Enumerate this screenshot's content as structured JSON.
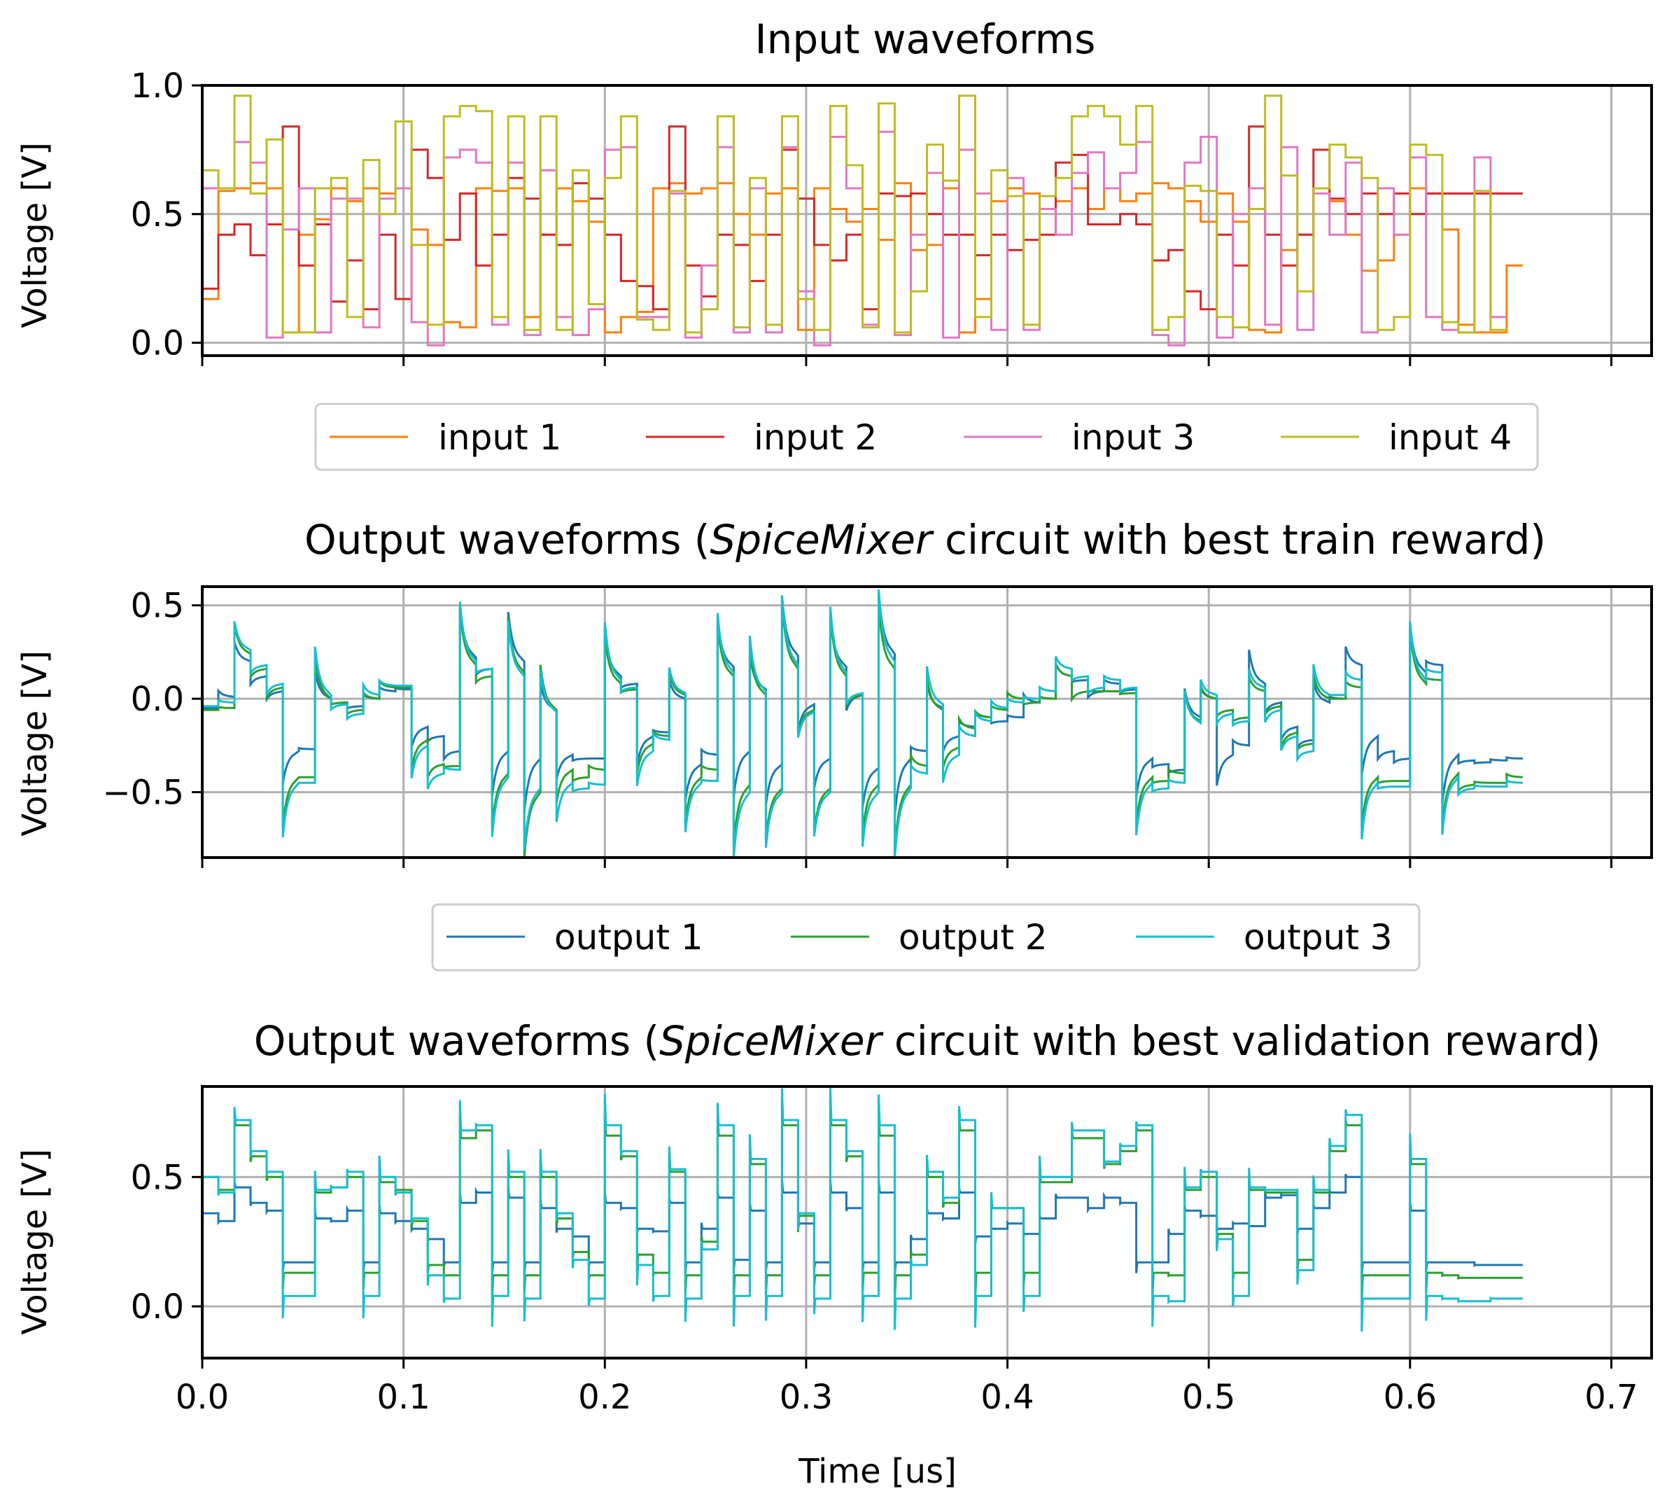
{
  "chart_data": [
    {
      "type": "line",
      "id": "inputs",
      "title": "Input waveforms",
      "ylabel": "Voltage [V]",
      "xlabel": "",
      "xlim": [
        0,
        0.72
      ],
      "ylim": [
        -0.05,
        1.0
      ],
      "yticks": [
        0.0,
        0.5,
        1.0
      ],
      "ytick_labels": [
        "0.0",
        "0.5",
        "1.0"
      ],
      "xticks": [
        0.0,
        0.1,
        0.2,
        0.3,
        0.4,
        0.5,
        0.6,
        0.7
      ],
      "xtick_labels": [],
      "grid": true,
      "legend_position": "below",
      "step": 0.008,
      "series": [
        {
          "name": "input 1",
          "color": "#ff7f0e",
          "values": [
            0.17,
            0.59,
            0.6,
            0.62,
            0.6,
            0.04,
            0.42,
            0.48,
            0.6,
            0.55,
            0.6,
            0.58,
            0.6,
            0.44,
            0.38,
            0.08,
            0.06,
            0.6,
            0.59,
            0.6,
            0.1,
            0.42,
            0.6,
            0.55,
            0.47,
            0.04,
            0.1,
            0.12,
            0.6,
            0.62,
            0.58,
            0.6,
            0.62,
            0.5,
            0.42,
            0.58,
            0.6,
            0.05,
            0.6,
            0.52,
            0.47,
            0.52,
            0.4,
            0.62,
            0.36,
            0.38,
            0.6,
            0.04,
            0.17,
            0.55,
            0.6,
            0.58,
            0.52,
            0.55,
            0.6,
            0.52,
            0.6,
            0.55,
            0.58,
            0.62,
            0.6,
            0.55,
            0.47,
            0.58,
            0.47,
            0.05,
            0.04,
            0.36,
            0.42,
            0.6,
            0.55,
            0.42,
            0.28,
            0.32,
            0.42,
            0.6,
            0.58,
            0.44,
            0.07,
            0.04,
            0.04,
            0.3
          ]
        },
        {
          "name": "input 2",
          "color": "#d62728",
          "values": [
            0.21,
            0.42,
            0.46,
            0.34,
            0.46,
            0.84,
            0.3,
            0.46,
            0.16,
            0.32,
            0.13,
            0.42,
            0.17,
            0.75,
            0.64,
            0.4,
            0.58,
            0.3,
            0.42,
            0.64,
            0.56,
            0.42,
            0.38,
            0.62,
            0.56,
            0.42,
            0.24,
            0.22,
            0.13,
            0.84,
            0.3,
            0.18,
            0.42,
            0.38,
            0.24,
            0.42,
            0.75,
            0.56,
            0.38,
            0.32,
            0.42,
            0.13,
            0.58,
            0.57,
            0.58,
            0.5,
            0.42,
            0.42,
            0.34,
            0.42,
            0.36,
            0.4,
            0.42,
            0.7,
            0.73,
            0.46,
            0.46,
            0.5,
            0.46,
            0.32,
            0.36,
            0.2,
            0.13,
            0.42,
            0.3,
            0.84,
            0.42,
            0.3,
            0.42,
            0.75,
            0.56,
            0.5,
            0.58,
            0.5,
            0.58,
            0.5,
            0.58,
            0.58,
            0.58,
            0.58,
            0.58,
            0.58
          ]
        },
        {
          "name": "input 3",
          "color": "#e377c2",
          "values": [
            0.6,
            0.6,
            0.78,
            0.7,
            0.02,
            0.44,
            0.6,
            0.04,
            0.56,
            0.56,
            0.06,
            0.56,
            0.6,
            0.08,
            -0.01,
            0.72,
            0.75,
            0.7,
            0.07,
            0.7,
            0.03,
            0.67,
            0.1,
            0.03,
            0.13,
            0.75,
            0.76,
            0.1,
            0.1,
            0.58,
            0.02,
            0.3,
            0.76,
            0.04,
            0.6,
            0.04,
            0.76,
            0.2,
            -0.01,
            0.8,
            0.6,
            0.07,
            0.82,
            0.03,
            0.42,
            0.66,
            0.02,
            0.75,
            0.58,
            0.05,
            0.64,
            0.05,
            0.52,
            0.42,
            0.66,
            0.74,
            0.6,
            0.66,
            0.78,
            0.03,
            -0.01,
            0.7,
            0.8,
            0.02,
            0.5,
            0.6,
            0.07,
            0.76,
            0.05,
            0.58,
            0.42,
            0.7,
            0.04,
            0.6,
            0.42,
            0.72,
            0.1,
            0.05,
            0.04,
            0.72,
            0.1
          ]
        },
        {
          "name": "input 4",
          "color": "#bcbd22",
          "values": [
            0.67,
            0.6,
            0.96,
            0.58,
            0.79,
            0.04,
            0.04,
            0.6,
            0.64,
            0.1,
            0.71,
            0.5,
            0.86,
            0.38,
            0.07,
            0.88,
            0.92,
            0.9,
            0.1,
            0.88,
            0.05,
            0.88,
            0.05,
            0.67,
            0.15,
            0.64,
            0.88,
            0.09,
            0.05,
            0.59,
            0.04,
            0.13,
            0.88,
            0.06,
            0.64,
            0.07,
            0.88,
            0.17,
            0.05,
            0.92,
            0.69,
            0.06,
            0.93,
            0.04,
            0.2,
            0.77,
            0.63,
            0.96,
            0.1,
            0.67,
            0.57,
            0.07,
            0.57,
            0.64,
            0.88,
            0.92,
            0.88,
            0.77,
            0.92,
            0.05,
            0.1,
            0.61,
            0.59,
            0.1,
            0.06,
            0.52,
            0.96,
            0.65,
            0.2,
            0.6,
            0.77,
            0.72,
            0.64,
            0.05,
            0.1,
            0.77,
            0.73,
            0.08,
            0.04,
            0.59,
            0.05
          ]
        }
      ]
    },
    {
      "type": "line",
      "id": "train",
      "title": "Output waveforms (SpiceMixer circuit with best train reward)",
      "title_parts": {
        "before": "Output waveforms (",
        "italic": "SpiceMixer",
        "after": " circuit with best train reward)"
      },
      "ylabel": "Voltage [V]",
      "xlabel": "",
      "xlim": [
        0,
        0.72
      ],
      "ylim": [
        -0.85,
        0.6
      ],
      "yticks": [
        -0.5,
        0.0,
        0.5
      ],
      "ytick_labels": [
        "−0.5",
        "0.0",
        "0.5"
      ],
      "xticks": [
        0.0,
        0.1,
        0.2,
        0.3,
        0.4,
        0.5,
        0.6,
        0.7
      ],
      "xtick_labels": [],
      "grid": true,
      "legend_position": "below",
      "step": 0.008,
      "spike_decay": 0.0025,
      "series": [
        {
          "name": "output 1",
          "color": "#1f77b4",
          "values": [
            -0.05,
            0.01,
            0.2,
            0.12,
            0.04,
            -0.28,
            -0.27,
            0.0,
            -0.02,
            -0.04,
            0.0,
            0.04,
            0.05,
            -0.15,
            -0.2,
            -0.28,
            0.22,
            0.16,
            -0.28,
            0.2,
            -0.32,
            -0.06,
            -0.3,
            -0.32,
            -0.32,
            0.12,
            0.08,
            -0.2,
            -0.18,
            0.0,
            -0.35,
            -0.3,
            0.17,
            -0.28,
            0.05,
            -0.35,
            0.23,
            -0.03,
            -0.32,
            0.17,
            0.02,
            -0.37,
            0.24,
            -0.32,
            -0.28,
            -0.05,
            -0.2,
            -0.15,
            -0.1,
            -0.12,
            -0.1,
            -0.02,
            0.0,
            0.12,
            0.1,
            0.04,
            0.08,
            0.05,
            -0.32,
            -0.35,
            -0.38,
            -0.1,
            0.0,
            -0.3,
            -0.25,
            0.08,
            -0.02,
            -0.15,
            -0.22,
            -0.02,
            0.0,
            0.18,
            -0.2,
            -0.28,
            -0.32,
            0.14,
            0.18,
            -0.3,
            -0.33,
            -0.34,
            -0.33,
            -0.32
          ]
        },
        {
          "name": "output 2",
          "color": "#2ca02c",
          "values": [
            -0.06,
            -0.05,
            0.24,
            0.16,
            0.06,
            -0.42,
            -0.42,
            0.0,
            -0.02,
            -0.06,
            0.0,
            0.06,
            0.06,
            -0.22,
            -0.35,
            -0.36,
            0.18,
            0.12,
            -0.4,
            0.14,
            -0.5,
            -0.06,
            -0.38,
            -0.42,
            -0.38,
            0.08,
            0.05,
            -0.24,
            -0.2,
            0.02,
            -0.42,
            -0.38,
            0.12,
            -0.46,
            0.02,
            -0.48,
            0.16,
            -0.06,
            -0.48,
            0.12,
            0.02,
            -0.46,
            0.16,
            -0.46,
            -0.36,
            -0.06,
            -0.26,
            -0.16,
            -0.1,
            -0.06,
            0.0,
            -0.02,
            0.0,
            0.12,
            0.04,
            0.04,
            0.04,
            0.03,
            -0.42,
            -0.44,
            -0.4,
            -0.12,
            0.0,
            -0.06,
            -0.1,
            0.04,
            -0.04,
            -0.18,
            -0.24,
            0.0,
            0.0,
            0.06,
            -0.42,
            -0.44,
            -0.44,
            0.08,
            0.1,
            -0.4,
            -0.46,
            -0.45,
            -0.45,
            -0.42
          ]
        },
        {
          "name": "output 3",
          "color": "#17becf",
          "values": [
            -0.04,
            -0.02,
            0.26,
            0.18,
            0.08,
            -0.45,
            -0.45,
            0.02,
            -0.03,
            -0.08,
            0.02,
            0.07,
            0.07,
            -0.25,
            -0.4,
            -0.38,
            0.2,
            0.16,
            -0.42,
            0.12,
            -0.48,
            -0.07,
            -0.45,
            -0.48,
            -0.46,
            0.1,
            0.06,
            -0.28,
            -0.22,
            0.03,
            -0.45,
            -0.44,
            0.14,
            -0.5,
            0.04,
            -0.5,
            0.18,
            -0.07,
            -0.5,
            0.14,
            0.03,
            -0.5,
            0.2,
            -0.48,
            -0.4,
            -0.03,
            -0.3,
            -0.2,
            -0.12,
            -0.05,
            -0.02,
            0.0,
            0.04,
            0.16,
            0.12,
            0.06,
            0.1,
            0.06,
            -0.45,
            -0.48,
            -0.45,
            -0.13,
            0.02,
            -0.08,
            -0.12,
            0.06,
            -0.06,
            -0.2,
            -0.28,
            0.02,
            0.02,
            0.1,
            -0.45,
            -0.47,
            -0.47,
            0.1,
            0.14,
            -0.42,
            -0.48,
            -0.47,
            -0.47,
            -0.45
          ]
        }
      ]
    },
    {
      "type": "line",
      "id": "validation",
      "title": "Output waveforms (SpiceMixer circuit with best validation reward)",
      "title_parts": {
        "before": "Output waveforms (",
        "italic": "SpiceMixer",
        "after": " circuit with best validation reward)"
      },
      "ylabel": "Voltage [V]",
      "xlabel": "Time [us]",
      "xlim": [
        0,
        0.72
      ],
      "ylim": [
        -0.2,
        0.85
      ],
      "yticks": [
        0.0,
        0.5
      ],
      "ytick_labels": [
        "0.0",
        "0.5"
      ],
      "xticks": [
        0.0,
        0.1,
        0.2,
        0.3,
        0.4,
        0.5,
        0.6,
        0.7
      ],
      "xtick_labels": [
        "0.0",
        "0.1",
        "0.2",
        "0.3",
        "0.4",
        "0.5",
        "0.6",
        "0.7"
      ],
      "grid": true,
      "step": 0.008,
      "series": [
        {
          "name": "output 1",
          "color": "#1f77b4",
          "values": [
            0.36,
            0.33,
            0.46,
            0.4,
            0.37,
            0.17,
            0.17,
            0.34,
            0.33,
            0.37,
            0.17,
            0.36,
            0.33,
            0.3,
            0.26,
            0.17,
            0.4,
            0.44,
            0.17,
            0.42,
            0.17,
            0.38,
            0.3,
            0.27,
            0.17,
            0.4,
            0.38,
            0.3,
            0.29,
            0.4,
            0.17,
            0.3,
            0.42,
            0.18,
            0.37,
            0.17,
            0.44,
            0.32,
            0.17,
            0.44,
            0.38,
            0.17,
            0.44,
            0.17,
            0.26,
            0.36,
            0.34,
            0.44,
            0.27,
            0.3,
            0.32,
            0.28,
            0.34,
            0.42,
            0.42,
            0.38,
            0.42,
            0.4,
            0.17,
            0.17,
            0.28,
            0.37,
            0.35,
            0.3,
            0.32,
            0.31,
            0.42,
            0.43,
            0.3,
            0.38,
            0.44,
            0.5,
            0.17,
            0.17,
            0.17,
            0.37,
            0.17,
            0.17,
            0.17,
            0.16,
            0.16,
            0.16
          ]
        },
        {
          "name": "output 2",
          "color": "#2ca02c",
          "values": [
            0.5,
            0.45,
            0.7,
            0.58,
            0.5,
            0.13,
            0.13,
            0.44,
            0.46,
            0.5,
            0.13,
            0.48,
            0.45,
            0.33,
            0.16,
            0.12,
            0.65,
            0.68,
            0.12,
            0.5,
            0.12,
            0.5,
            0.34,
            0.21,
            0.12,
            0.66,
            0.58,
            0.2,
            0.13,
            0.52,
            0.12,
            0.25,
            0.66,
            0.12,
            0.55,
            0.12,
            0.7,
            0.35,
            0.12,
            0.7,
            0.58,
            0.13,
            0.66,
            0.12,
            0.2,
            0.5,
            0.4,
            0.68,
            0.13,
            0.38,
            0.38,
            0.13,
            0.48,
            0.48,
            0.65,
            0.65,
            0.55,
            0.6,
            0.68,
            0.13,
            0.12,
            0.45,
            0.5,
            0.28,
            0.13,
            0.45,
            0.44,
            0.44,
            0.18,
            0.44,
            0.6,
            0.7,
            0.12,
            0.12,
            0.12,
            0.55,
            0.13,
            0.12,
            0.11,
            0.11,
            0.11,
            0.11
          ]
        },
        {
          "name": "output 3",
          "color": "#17becf",
          "values": [
            0.5,
            0.44,
            0.72,
            0.6,
            0.52,
            0.04,
            0.04,
            0.45,
            0.46,
            0.52,
            0.04,
            0.5,
            0.44,
            0.34,
            0.12,
            0.03,
            0.68,
            0.7,
            0.04,
            0.52,
            0.03,
            0.52,
            0.36,
            0.18,
            0.03,
            0.7,
            0.6,
            0.16,
            0.04,
            0.53,
            0.03,
            0.22,
            0.7,
            0.04,
            0.57,
            0.04,
            0.72,
            0.36,
            0.03,
            0.72,
            0.6,
            0.04,
            0.7,
            0.03,
            0.16,
            0.52,
            0.42,
            0.72,
            0.04,
            0.38,
            0.38,
            0.04,
            0.5,
            0.5,
            0.68,
            0.68,
            0.56,
            0.62,
            0.7,
            0.04,
            0.02,
            0.46,
            0.52,
            0.26,
            0.04,
            0.46,
            0.45,
            0.45,
            0.14,
            0.45,
            0.62,
            0.74,
            0.03,
            0.03,
            0.03,
            0.57,
            0.04,
            0.03,
            0.02,
            0.02,
            0.03,
            0.03
          ]
        }
      ]
    }
  ]
}
